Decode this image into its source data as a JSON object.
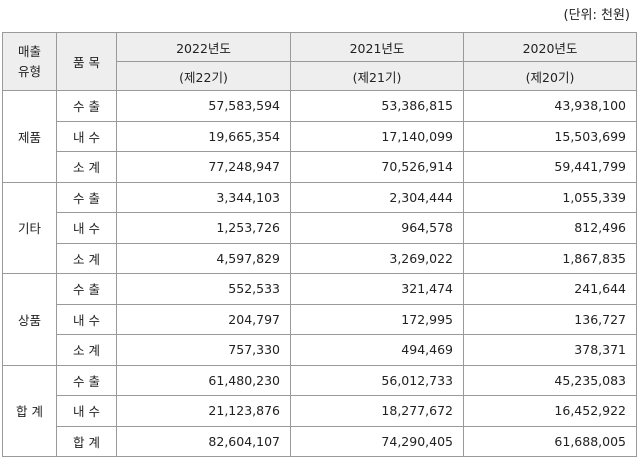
{
  "unit": "(단위: 천원)",
  "header": {
    "type_label": [
      "매출",
      "유형"
    ],
    "item_label": "품 목",
    "columns": [
      {
        "year": "2022년도",
        "term": "(제22기)"
      },
      {
        "year": "2021년도",
        "term": "(제21기)"
      },
      {
        "year": "2020년도",
        "term": "(제20기)"
      }
    ]
  },
  "groups": [
    {
      "name": "제품",
      "rows": [
        {
          "item": "수 출",
          "values": [
            "57,583,594",
            "53,386,815",
            "43,938,100"
          ]
        },
        {
          "item": "내 수",
          "values": [
            "19,665,354",
            "17,140,099",
            "15,503,699"
          ]
        },
        {
          "item": "소 계",
          "values": [
            "77,248,947",
            "70,526,914",
            "59,441,799"
          ]
        }
      ]
    },
    {
      "name": "기타",
      "rows": [
        {
          "item": "수 출",
          "values": [
            "3,344,103",
            "2,304,444",
            "1,055,339"
          ]
        },
        {
          "item": "내 수",
          "values": [
            "1,253,726",
            "964,578",
            "812,496"
          ]
        },
        {
          "item": "소 계",
          "values": [
            "4,597,829",
            "3,269,022",
            "1,867,835"
          ]
        }
      ]
    },
    {
      "name": "상품",
      "rows": [
        {
          "item": "수 출",
          "values": [
            "552,533",
            "321,474",
            "241,644"
          ]
        },
        {
          "item": "내 수",
          "values": [
            "204,797",
            "172,995",
            "136,727"
          ]
        },
        {
          "item": "소 계",
          "values": [
            "757,330",
            "494,469",
            "378,371"
          ]
        }
      ]
    },
    {
      "name": "합 계",
      "rows": [
        {
          "item": "수 출",
          "values": [
            "61,480,230",
            "56,012,733",
            "45,235,083"
          ]
        },
        {
          "item": "내 수",
          "values": [
            "21,123,876",
            "18,277,672",
            "16,452,922"
          ]
        },
        {
          "item": "합 계",
          "values": [
            "82,604,107",
            "74,290,405",
            "61,688,005"
          ]
        }
      ]
    }
  ]
}
